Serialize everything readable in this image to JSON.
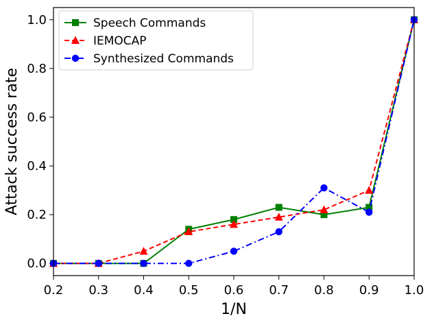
{
  "chart_data": {
    "type": "line",
    "title": "",
    "xlabel": "1/N",
    "ylabel": "Attack success rate",
    "x": [
      0.2,
      0.3,
      0.4,
      0.5,
      0.6,
      0.7,
      0.8,
      0.9,
      1.0
    ],
    "xlim": [
      0.2,
      1.0
    ],
    "ylim": [
      -0.05,
      1.05
    ],
    "xticks": [
      "0.2",
      "0.3",
      "0.4",
      "0.5",
      "0.6",
      "0.7",
      "0.8",
      "0.9",
      "1.0"
    ],
    "yticks": [
      "0.0",
      "0.2",
      "0.4",
      "0.6",
      "0.8",
      "1.0"
    ],
    "grid": false,
    "legend_position": "top-left",
    "series": [
      {
        "name": "Speech Commands",
        "color": "#008000",
        "marker": "square",
        "linestyle": "solid",
        "values": [
          0.0,
          0.0,
          0.0,
          0.14,
          0.18,
          0.23,
          0.2,
          0.23,
          1.0
        ]
      },
      {
        "name": "IEMOCAP",
        "color": "#ff0000",
        "marker": "triangle",
        "linestyle": "dashed",
        "values": [
          0.0,
          0.0,
          0.05,
          0.13,
          0.16,
          0.19,
          0.22,
          0.3,
          1.0
        ]
      },
      {
        "name": "Synthesized Commands",
        "color": "#0000ff",
        "marker": "circle",
        "linestyle": "dashdot",
        "values": [
          0.0,
          0.0,
          0.0,
          0.0,
          0.05,
          0.13,
          0.31,
          0.21,
          1.0
        ]
      }
    ]
  }
}
